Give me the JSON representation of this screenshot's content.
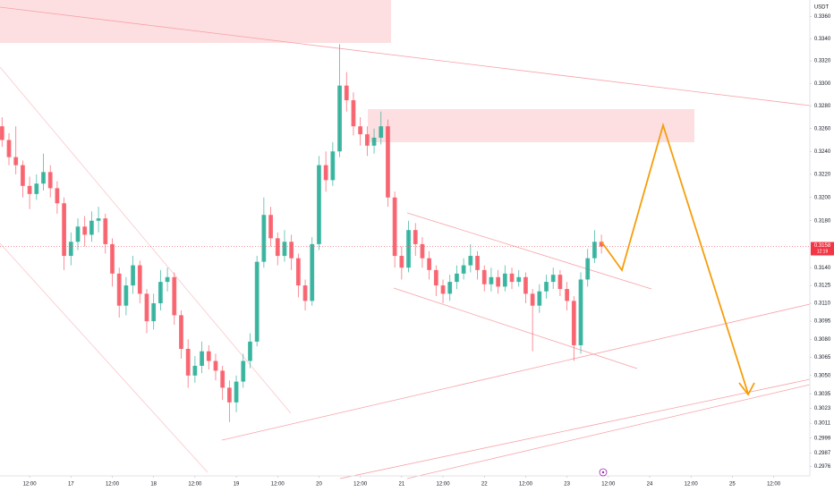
{
  "chart_data": {
    "type": "candlestick",
    "currency": "USDT",
    "log_scale": true,
    "grid": false,
    "up_color": "#22ab94",
    "down_color": "#f7525f",
    "x": [
      -8,
      -6,
      -4,
      -2,
      0,
      2,
      4,
      6,
      8,
      10,
      12,
      14,
      16,
      18,
      20,
      22,
      24,
      26,
      28,
      30,
      32,
      34,
      36,
      38,
      40,
      42,
      44,
      46,
      48,
      50,
      52,
      54,
      56,
      58,
      60,
      62,
      64,
      66,
      68,
      70,
      72,
      74,
      76,
      78,
      80,
      82,
      84,
      86,
      88,
      90,
      92,
      94,
      96,
      98,
      100,
      102,
      104,
      106,
      108,
      110,
      112,
      114,
      116,
      118,
      120,
      122,
      124,
      126,
      128,
      130,
      132,
      134,
      136,
      138,
      140,
      142,
      144,
      146,
      148,
      150,
      152,
      154,
      156,
      158,
      160,
      162,
      164,
      166
    ],
    "open": [
      0.3262,
      0.325,
      0.3235,
      0.3228,
      0.321,
      0.3203,
      0.3212,
      0.3222,
      0.3208,
      0.3195,
      0.315,
      0.3162,
      0.3175,
      0.3168,
      0.318,
      0.3182,
      0.316,
      0.3135,
      0.3108,
      0.3125,
      0.3142,
      0.3118,
      0.3095,
      0.311,
      0.3128,
      0.3132,
      0.31,
      0.3072,
      0.305,
      0.3058,
      0.307,
      0.3062,
      0.3054,
      0.304,
      0.3028,
      0.3045,
      0.3062,
      0.3078,
      0.3145,
      0.3185,
      0.3165,
      0.315,
      0.3162,
      0.3148,
      0.3125,
      0.3112,
      0.316,
      0.3228,
      0.3215,
      0.324,
      0.3298,
      0.3285,
      0.3262,
      0.3255,
      0.3245,
      0.3252,
      0.3262,
      0.32,
      0.315,
      0.314,
      0.3172,
      0.316,
      0.3148,
      0.3138,
      0.3125,
      0.3118,
      0.3128,
      0.3135,
      0.3142,
      0.315,
      0.3138,
      0.3126,
      0.3132,
      0.3124,
      0.3135,
      0.3128,
      0.3132,
      0.3118,
      0.3108,
      0.312,
      0.3128,
      0.3134,
      0.3122,
      0.3112,
      0.3075,
      0.313,
      0.3148,
      0.3162
    ],
    "high": [
      0.327,
      0.3256,
      0.3262,
      0.3232,
      0.3218,
      0.322,
      0.3238,
      0.3228,
      0.3214,
      0.32,
      0.317,
      0.3182,
      0.3184,
      0.3188,
      0.3192,
      0.3186,
      0.3165,
      0.314,
      0.3132,
      0.315,
      0.3146,
      0.3122,
      0.3118,
      0.3138,
      0.314,
      0.3136,
      0.3104,
      0.308,
      0.3066,
      0.3078,
      0.3075,
      0.3068,
      0.3058,
      0.3046,
      0.305,
      0.3068,
      0.3085,
      0.315,
      0.32,
      0.3192,
      0.317,
      0.3172,
      0.3168,
      0.3152,
      0.313,
      0.3166,
      0.3236,
      0.324,
      0.3248,
      0.3335,
      0.331,
      0.3292,
      0.327,
      0.3262,
      0.326,
      0.3275,
      0.3268,
      0.3205,
      0.3158,
      0.318,
      0.3178,
      0.3166,
      0.3154,
      0.3142,
      0.313,
      0.3134,
      0.3142,
      0.3148,
      0.316,
      0.3154,
      0.3142,
      0.314,
      0.3138,
      0.3142,
      0.314,
      0.3138,
      0.3136,
      0.3122,
      0.3126,
      0.3134,
      0.314,
      0.3138,
      0.3128,
      0.3116,
      0.3136,
      0.3156,
      0.3172,
      0.3168
    ],
    "low": [
      0.3244,
      0.3228,
      0.322,
      0.32,
      0.319,
      0.3198,
      0.3206,
      0.32,
      0.3186,
      0.3138,
      0.3142,
      0.3155,
      0.3158,
      0.3162,
      0.317,
      0.3152,
      0.3124,
      0.3098,
      0.31,
      0.3118,
      0.311,
      0.3085,
      0.3088,
      0.3104,
      0.312,
      0.3092,
      0.3064,
      0.304,
      0.3044,
      0.3052,
      0.3055,
      0.3046,
      0.303,
      0.3012,
      0.302,
      0.304,
      0.3056,
      0.3074,
      0.314,
      0.3158,
      0.3142,
      0.3145,
      0.3138,
      0.3115,
      0.3104,
      0.3108,
      0.3155,
      0.3205,
      0.321,
      0.3235,
      0.3275,
      0.3254,
      0.3245,
      0.3236,
      0.3238,
      0.3246,
      0.3192,
      0.314,
      0.313,
      0.3136,
      0.315,
      0.314,
      0.313,
      0.3116,
      0.311,
      0.3112,
      0.3122,
      0.313,
      0.3136,
      0.313,
      0.312,
      0.312,
      0.3118,
      0.312,
      0.3122,
      0.3124,
      0.311,
      0.307,
      0.3102,
      0.3114,
      0.3122,
      0.3116,
      0.3104,
      0.3062,
      0.3068,
      0.3124,
      0.3144,
      0.3152
    ],
    "close": [
      0.325,
      0.3235,
      0.3228,
      0.321,
      0.3203,
      0.3212,
      0.3222,
      0.3208,
      0.3195,
      0.315,
      0.3162,
      0.3175,
      0.3168,
      0.318,
      0.3182,
      0.316,
      0.3135,
      0.3108,
      0.3125,
      0.3142,
      0.3118,
      0.3095,
      0.311,
      0.3128,
      0.3132,
      0.31,
      0.3072,
      0.305,
      0.3058,
      0.307,
      0.3062,
      0.3054,
      0.304,
      0.3028,
      0.3045,
      0.3062,
      0.3078,
      0.3145,
      0.3185,
      0.3165,
      0.315,
      0.3162,
      0.3148,
      0.3125,
      0.3112,
      0.316,
      0.3228,
      0.3215,
      0.324,
      0.3298,
      0.3285,
      0.3262,
      0.3255,
      0.3245,
      0.3252,
      0.3262,
      0.32,
      0.315,
      0.314,
      0.3172,
      0.316,
      0.3148,
      0.3138,
      0.3125,
      0.3118,
      0.3128,
      0.3135,
      0.3142,
      0.315,
      0.3138,
      0.3126,
      0.3132,
      0.3124,
      0.3135,
      0.3128,
      0.3132,
      0.3118,
      0.3108,
      0.312,
      0.3128,
      0.3134,
      0.3122,
      0.3112,
      0.3075,
      0.313,
      0.3148,
      0.3162,
      0.3158
    ],
    "last_price": {
      "value": 0.3158,
      "label": "0.3158"
    },
    "countdown": "12:19",
    "xlim": [
      -8.6,
      226.5
    ],
    "ylim": [
      0.297,
      0.3375
    ],
    "xticks": [
      {
        "value": 0,
        "label": "12:00"
      },
      {
        "value": 12,
        "label": "17"
      },
      {
        "value": 24,
        "label": "12:00"
      },
      {
        "value": 36,
        "label": "18"
      },
      {
        "value": 48,
        "label": "12:00"
      },
      {
        "value": 60,
        "label": "19"
      },
      {
        "value": 72,
        "label": "12:00"
      },
      {
        "value": 84,
        "label": "20"
      },
      {
        "value": 96,
        "label": "12:00"
      },
      {
        "value": 108,
        "label": "21"
      },
      {
        "value": 120,
        "label": "12:00"
      },
      {
        "value": 132,
        "label": "22"
      },
      {
        "value": 144,
        "label": "12:00"
      },
      {
        "value": 156,
        "label": "23"
      },
      {
        "value": 168,
        "label": "12:00"
      },
      {
        "value": 180,
        "label": "24"
      },
      {
        "value": 192,
        "label": "12:00"
      },
      {
        "value": 204,
        "label": "25"
      },
      {
        "value": 216,
        "label": "12:00"
      }
    ],
    "yticks": [
      {
        "value": 0.336,
        "label": "0.3360"
      },
      {
        "value": 0.334,
        "label": "0.3340"
      },
      {
        "value": 0.332,
        "label": "0.3320"
      },
      {
        "value": 0.33,
        "label": "0.3300"
      },
      {
        "value": 0.328,
        "label": "0.3280"
      },
      {
        "value": 0.326,
        "label": "0.3260"
      },
      {
        "value": 0.324,
        "label": "0.3240"
      },
      {
        "value": 0.322,
        "label": "0.3220"
      },
      {
        "value": 0.32,
        "label": "0.3200"
      },
      {
        "value": 0.318,
        "label": "0.3180"
      },
      {
        "value": 0.314,
        "label": "0.3140"
      },
      {
        "value": 0.3125,
        "label": "0.3125"
      },
      {
        "value": 0.311,
        "label": "0.3110"
      },
      {
        "value": 0.3095,
        "label": "0.3095"
      },
      {
        "value": 0.308,
        "label": "0.3080"
      },
      {
        "value": 0.3065,
        "label": "0.3065"
      },
      {
        "value": 0.305,
        "label": "0.3050"
      },
      {
        "value": 0.3035,
        "label": "0.3035"
      },
      {
        "value": 0.3023,
        "label": "0.3023"
      },
      {
        "value": 0.3011,
        "label": "0.3011"
      },
      {
        "value": 0.2999,
        "label": "0.2999"
      },
      {
        "value": 0.2987,
        "label": "0.2987"
      },
      {
        "value": 0.2976,
        "label": "0.2976"
      }
    ]
  }
}
